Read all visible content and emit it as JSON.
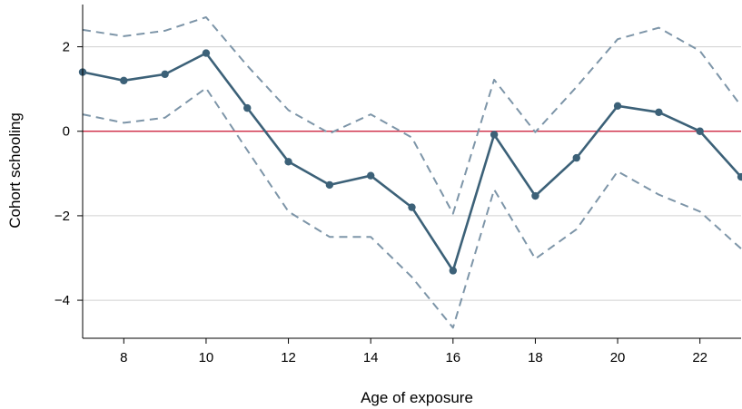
{
  "chart_data": {
    "type": "line",
    "title": "",
    "xlabel": "Age of exposure",
    "ylabel": "Cohort schooling",
    "xlim": [
      7,
      23
    ],
    "ylim": [
      -4.9,
      3.0
    ],
    "x_ticks": [
      8,
      10,
      12,
      14,
      16,
      18,
      20,
      22
    ],
    "y_ticks": [
      -4,
      -2,
      0,
      2
    ],
    "y_tick_labels": [
      "−4",
      "−2",
      "0",
      "2"
    ],
    "grid": "horizontal",
    "reference_line": {
      "y": 0,
      "color": "#c8102e"
    },
    "x": [
      7,
      8,
      9,
      10,
      11,
      12,
      13,
      14,
      15,
      16,
      17,
      18,
      19,
      20,
      21,
      22,
      23
    ],
    "series": [
      {
        "role": "estimate",
        "style": "solid-with-markers",
        "color": "#3c6178",
        "values": [
          1.4,
          1.2,
          1.35,
          1.85,
          0.55,
          -0.72,
          -1.27,
          -1.05,
          -1.8,
          -3.3,
          -0.08,
          -1.53,
          -0.63,
          0.6,
          0.45,
          0.0,
          -1.08
        ]
      },
      {
        "role": "upper-ci",
        "style": "dashed",
        "color": "#7d95a8",
        "values": [
          2.4,
          2.25,
          2.38,
          2.7,
          1.55,
          0.5,
          -0.05,
          0.4,
          -0.15,
          -1.95,
          1.22,
          -0.02,
          1.05,
          2.18,
          2.45,
          1.9,
          0.6
        ]
      },
      {
        "role": "lower-ci",
        "style": "dashed",
        "color": "#7d95a8",
        "values": [
          0.4,
          0.2,
          0.32,
          1.02,
          -0.45,
          -1.9,
          -2.5,
          -2.5,
          -3.45,
          -4.65,
          -1.38,
          -3.02,
          -2.32,
          -0.95,
          -1.5,
          -1.9,
          -2.78
        ]
      }
    ]
  }
}
